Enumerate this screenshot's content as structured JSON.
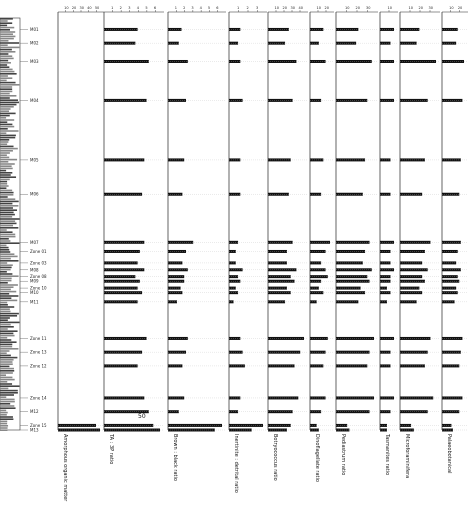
{
  "chart_data": {
    "type": "bar",
    "title": "",
    "depth_range": [
      0,
      18
    ],
    "samples": [
      {
        "label": "M01",
        "depth": 0.5
      },
      {
        "label": "M02",
        "depth": 1.1
      },
      {
        "label": "M03",
        "depth": 1.9
      },
      {
        "label": "M04",
        "depth": 3.6
      },
      {
        "label": "M05",
        "depth": 6.2
      },
      {
        "label": "M06",
        "depth": 7.7
      },
      {
        "label": "M07",
        "depth": 9.8
      },
      {
        "label": "Zone 01",
        "depth": 10.2
      },
      {
        "label": "Zone 03",
        "depth": 10.7
      },
      {
        "label": "M08",
        "depth": 11.0
      },
      {
        "label": "Zone 08",
        "depth": 11.3
      },
      {
        "label": "M09",
        "depth": 11.5
      },
      {
        "label": "Zone 10",
        "depth": 11.8
      },
      {
        "label": "M10",
        "depth": 12.0
      },
      {
        "label": "M11",
        "depth": 12.4
      },
      {
        "label": "Zone 11",
        "depth": 14.0
      },
      {
        "label": "Zone 13",
        "depth": 14.6
      },
      {
        "label": "Zone 12",
        "depth": 15.2
      },
      {
        "label": "Zone 14",
        "depth": 16.6
      },
      {
        "label": "M12",
        "depth": 17.2
      },
      {
        "label": "Zone 15",
        "depth": 17.8
      },
      {
        "label": "M13",
        "depth": 18.0
      }
    ],
    "columns": [
      {
        "name": "Amorphous organic matter",
        "ticks": [
          "10",
          "20",
          "30",
          "40",
          "50"
        ],
        "values": [
          0,
          0,
          0,
          0,
          0,
          0,
          0,
          0,
          0,
          0,
          0,
          0,
          0,
          0,
          0,
          0,
          0,
          0,
          0,
          0,
          38,
          42
        ]
      },
      {
        "name": "TA : 3P ratio",
        "ticks": [
          "1",
          "2",
          "3",
          "4",
          "5",
          "6"
        ],
        "values": [
          30,
          28,
          40,
          38,
          36,
          34,
          36,
          32,
          30,
          36,
          28,
          32,
          30,
          34,
          30,
          38,
          34,
          30,
          36,
          40,
          44,
          50
        ]
      },
      {
        "name": "Brown : black ratio",
        "ticks": [
          "1",
          "2",
          "3",
          "4",
          "5",
          "6"
        ],
        "values": [
          15,
          12,
          22,
          20,
          18,
          16,
          28,
          20,
          16,
          22,
          18,
          18,
          14,
          16,
          10,
          22,
          20,
          16,
          18,
          12,
          60,
          52
        ]
      },
      {
        "name": "Inertinite : detrital ratio",
        "ticks": [
          "1",
          "2",
          "3"
        ],
        "values": [
          10,
          8,
          10,
          12,
          10,
          10,
          8,
          6,
          6,
          12,
          8,
          10,
          6,
          8,
          4,
          10,
          12,
          14,
          10,
          8,
          30,
          20
        ]
      },
      {
        "name": "Botryococcus ratio",
        "ticks": [
          "10",
          "20",
          "30",
          "40"
        ],
        "values": [
          22,
          18,
          30,
          26,
          24,
          22,
          26,
          20,
          20,
          30,
          24,
          28,
          20,
          24,
          18,
          38,
          34,
          28,
          32,
          26,
          24,
          20
        ]
      },
      {
        "name": "Dinoflagellate ratio",
        "ticks": [
          "10",
          "20"
        ],
        "values": [
          12,
          8,
          14,
          10,
          12,
          10,
          18,
          14,
          10,
          14,
          16,
          10,
          8,
          12,
          6,
          16,
          14,
          12,
          14,
          10,
          6,
          8
        ]
      },
      {
        "name": "Pediastrum ratio",
        "ticks": [
          "10",
          "20",
          "30"
        ],
        "values": [
          20,
          18,
          32,
          28,
          26,
          24,
          30,
          26,
          24,
          32,
          28,
          30,
          22,
          26,
          20,
          34,
          30,
          28,
          34,
          30,
          10,
          12
        ]
      },
      {
        "name": "Tasmanites ratio",
        "ticks": [
          "10"
        ],
        "values": [
          4,
          3,
          4,
          4,
          3,
          3,
          4,
          3,
          3,
          4,
          3,
          3,
          2,
          3,
          2,
          4,
          3,
          3,
          4,
          3,
          2,
          2
        ]
      },
      {
        "name": "Microforaminifera",
        "ticks": [
          "10",
          "20",
          "30"
        ],
        "values": [
          14,
          12,
          26,
          20,
          18,
          16,
          22,
          18,
          16,
          20,
          16,
          18,
          14,
          16,
          12,
          22,
          20,
          18,
          24,
          20,
          8,
          10
        ]
      },
      {
        "name": "Palaeobotanical",
        "ticks": [
          "10",
          "20"
        ],
        "values": [
          20,
          18,
          28,
          26,
          24,
          22,
          24,
          20,
          18,
          24,
          20,
          22,
          18,
          20,
          16,
          26,
          24,
          22,
          26,
          22,
          12,
          14
        ]
      }
    ],
    "annotation": "50"
  }
}
